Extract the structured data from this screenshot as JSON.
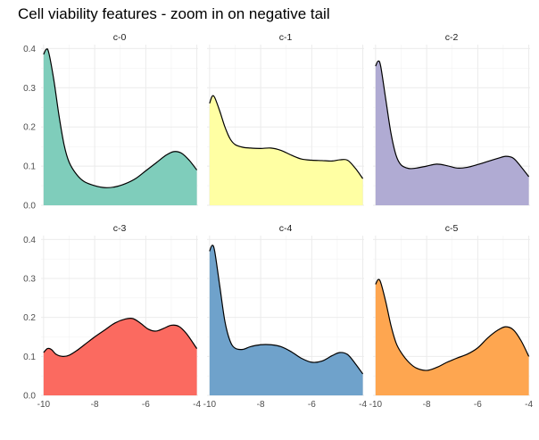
{
  "chart_data": {
    "type": "area",
    "title": "Cell viability features - zoom in on negative tail",
    "xlabel": "",
    "ylabel": "",
    "xlim": [
      -10.1,
      -3.95
    ],
    "ylim": [
      0,
      0.41
    ],
    "x_ticks": [
      -10,
      -8,
      -6,
      -4
    ],
    "x_tick_labels": [
      "-10",
      "-8",
      "-6",
      "-4"
    ],
    "y_ticks": [
      0,
      0.1,
      0.2,
      0.3,
      0.4
    ],
    "y_tick_labels": [
      "0.0",
      "0.1",
      "0.2",
      "0.3",
      "0.4"
    ],
    "grid": true,
    "legend": "none",
    "facets": [
      {
        "name": "c-0",
        "color": "#7fcdbb",
        "x": [
          -10.0,
          -9.9,
          -9.8,
          -9.6,
          -9.4,
          -9.2,
          -9.0,
          -8.7,
          -8.4,
          -8.0,
          -7.6,
          -7.2,
          -6.8,
          -6.4,
          -6.0,
          -5.6,
          -5.2,
          -4.9,
          -4.6,
          -4.3,
          -4.0
        ],
        "y": [
          0.385,
          0.398,
          0.39,
          0.32,
          0.23,
          0.155,
          0.11,
          0.078,
          0.06,
          0.05,
          0.045,
          0.047,
          0.055,
          0.068,
          0.088,
          0.108,
          0.128,
          0.137,
          0.133,
          0.115,
          0.09
        ]
      },
      {
        "name": "c-1",
        "color": "#ffffa3",
        "x": [
          -10.0,
          -9.9,
          -9.8,
          -9.6,
          -9.4,
          -9.2,
          -9.0,
          -8.7,
          -8.4,
          -8.0,
          -7.6,
          -7.2,
          -6.8,
          -6.4,
          -6.0,
          -5.6,
          -5.2,
          -4.9,
          -4.6,
          -4.3,
          -4.0
        ],
        "y": [
          0.26,
          0.278,
          0.275,
          0.24,
          0.2,
          0.17,
          0.155,
          0.148,
          0.146,
          0.145,
          0.146,
          0.14,
          0.128,
          0.118,
          0.115,
          0.114,
          0.113,
          0.116,
          0.115,
          0.095,
          0.068
        ]
      },
      {
        "name": "c-2",
        "color": "#b0abd3",
        "x": [
          -10.0,
          -9.9,
          -9.8,
          -9.6,
          -9.4,
          -9.2,
          -9.0,
          -8.7,
          -8.4,
          -8.0,
          -7.6,
          -7.2,
          -6.8,
          -6.4,
          -6.0,
          -5.6,
          -5.2,
          -4.9,
          -4.6,
          -4.3,
          -4.0
        ],
        "y": [
          0.355,
          0.368,
          0.355,
          0.27,
          0.185,
          0.128,
          0.103,
          0.094,
          0.095,
          0.1,
          0.105,
          0.101,
          0.095,
          0.097,
          0.104,
          0.112,
          0.12,
          0.125,
          0.12,
          0.098,
          0.073
        ]
      },
      {
        "name": "c-3",
        "color": "#fb6a60",
        "x": [
          -10.0,
          -9.85,
          -9.7,
          -9.5,
          -9.25,
          -9.0,
          -8.7,
          -8.4,
          -8.0,
          -7.6,
          -7.2,
          -6.8,
          -6.5,
          -6.2,
          -5.9,
          -5.6,
          -5.3,
          -5.0,
          -4.7,
          -4.4,
          -4.0
        ],
        "y": [
          0.11,
          0.12,
          0.118,
          0.105,
          0.1,
          0.103,
          0.115,
          0.13,
          0.15,
          0.168,
          0.186,
          0.196,
          0.197,
          0.185,
          0.17,
          0.165,
          0.172,
          0.18,
          0.177,
          0.158,
          0.12
        ]
      },
      {
        "name": "c-4",
        "color": "#6fa2cb",
        "x": [
          -10.0,
          -9.9,
          -9.8,
          -9.6,
          -9.4,
          -9.2,
          -9.0,
          -8.7,
          -8.4,
          -8.0,
          -7.6,
          -7.2,
          -6.8,
          -6.4,
          -6.0,
          -5.6,
          -5.2,
          -4.9,
          -4.6,
          -4.3,
          -4.0
        ],
        "y": [
          0.37,
          0.385,
          0.37,
          0.28,
          0.19,
          0.14,
          0.121,
          0.118,
          0.125,
          0.13,
          0.13,
          0.125,
          0.112,
          0.095,
          0.085,
          0.088,
          0.102,
          0.11,
          0.105,
          0.082,
          0.055
        ]
      },
      {
        "name": "c-5",
        "color": "#fea650",
        "x": [
          -10.0,
          -9.9,
          -9.8,
          -9.6,
          -9.4,
          -9.2,
          -9.0,
          -8.7,
          -8.4,
          -8.0,
          -7.6,
          -7.2,
          -6.8,
          -6.4,
          -6.0,
          -5.6,
          -5.2,
          -4.9,
          -4.6,
          -4.3,
          -4.0
        ],
        "y": [
          0.285,
          0.297,
          0.29,
          0.24,
          0.18,
          0.135,
          0.11,
          0.085,
          0.07,
          0.064,
          0.072,
          0.085,
          0.096,
          0.106,
          0.122,
          0.148,
          0.168,
          0.176,
          0.168,
          0.14,
          0.1
        ]
      }
    ]
  }
}
